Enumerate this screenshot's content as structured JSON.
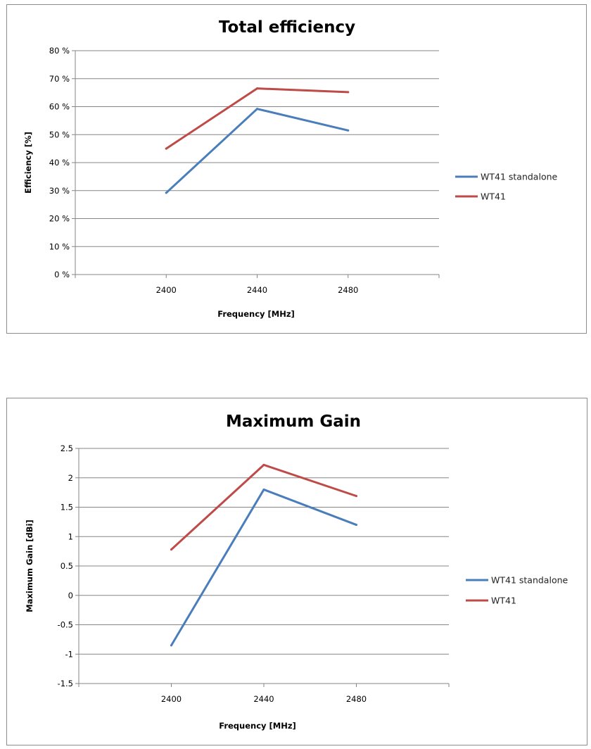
{
  "chart_data": [
    {
      "type": "line",
      "title": "Total efficiency",
      "xlabel": "Frequency [MHz]",
      "ylabel": "Efficiency [%]",
      "categories": [
        "2400",
        "2440",
        "2480"
      ],
      "y_ticks": [
        "0 %",
        "10 %",
        "20 %",
        "30 %",
        "40 %",
        "50 %",
        "60 %",
        "70 %",
        "80 %"
      ],
      "ylim": [
        0,
        80
      ],
      "grid": true,
      "legend_position": "right",
      "series": [
        {
          "name": "WT41 standalone",
          "color": "#4a7ebb",
          "values": [
            29.2,
            59.2,
            51.5
          ]
        },
        {
          "name": "WT41",
          "color": "#be4b48",
          "values": [
            45,
            66.5,
            65.2
          ]
        }
      ]
    },
    {
      "type": "line",
      "title": "Maximum Gain",
      "xlabel": "Frequency [MHz]",
      "ylabel": "Maximum Gain [dBi]",
      "categories": [
        "2400",
        "2440",
        "2480"
      ],
      "y_ticks": [
        "-1.5",
        "-1",
        "-0.5",
        "0",
        "0.5",
        "1",
        "1.5",
        "2",
        "2.5"
      ],
      "ylim": [
        -1.5,
        2.5
      ],
      "grid": true,
      "legend_position": "right",
      "series": [
        {
          "name": "WT41 standalone",
          "color": "#4a7ebb",
          "values": [
            -0.85,
            1.8,
            1.2
          ]
        },
        {
          "name": "WT41",
          "color": "#be4b48",
          "values": [
            0.78,
            2.22,
            1.69
          ]
        }
      ]
    }
  ]
}
